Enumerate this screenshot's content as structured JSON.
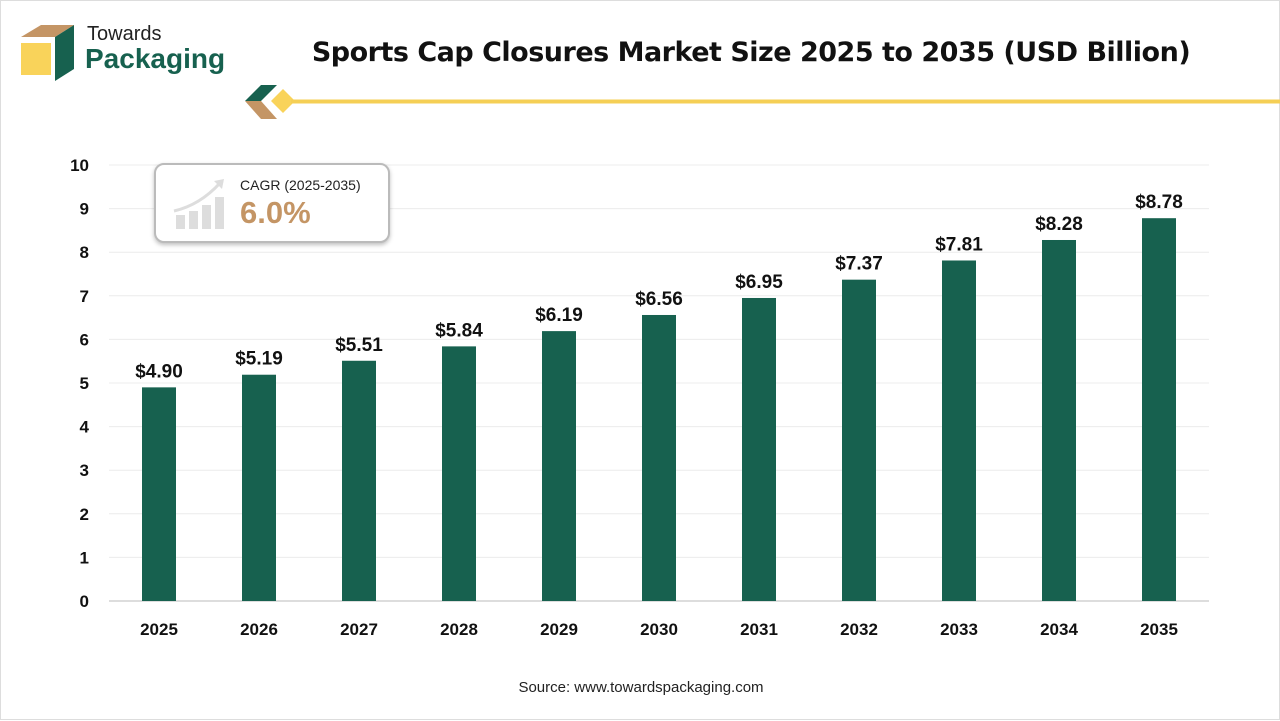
{
  "brand": {
    "line1": "Towards",
    "line2": "Packaging"
  },
  "cagr": {
    "label": "CAGR (2025-2035)",
    "value": "6.0%"
  },
  "source": "Source: www.towardspackaging.com",
  "colors": {
    "bar": "#17614f",
    "accent": "#f5cf55",
    "brown": "#c49565"
  },
  "chart_data": {
    "type": "bar",
    "title": "Sports Cap Closures Market Size 2025 to 2035 (USD Billion)",
    "categories": [
      "2025",
      "2026",
      "2027",
      "2028",
      "2029",
      "2030",
      "2031",
      "2032",
      "2033",
      "2034",
      "2035"
    ],
    "values": [
      4.9,
      5.19,
      5.51,
      5.84,
      6.19,
      6.56,
      6.95,
      7.37,
      7.81,
      8.28,
      8.78
    ],
    "data_labels": [
      "$4.90",
      "$5.19",
      "$5.51",
      "$5.84",
      "$6.19",
      "$6.56",
      "$6.95",
      "$7.37",
      "$7.81",
      "$8.28",
      "$8.78"
    ],
    "yticks": [
      "0",
      "1",
      "2",
      "3",
      "4",
      "5",
      "6",
      "7",
      "8",
      "9",
      "10"
    ],
    "ylim": [
      0,
      10
    ],
    "grid": true,
    "xlabel": "",
    "ylabel": ""
  }
}
